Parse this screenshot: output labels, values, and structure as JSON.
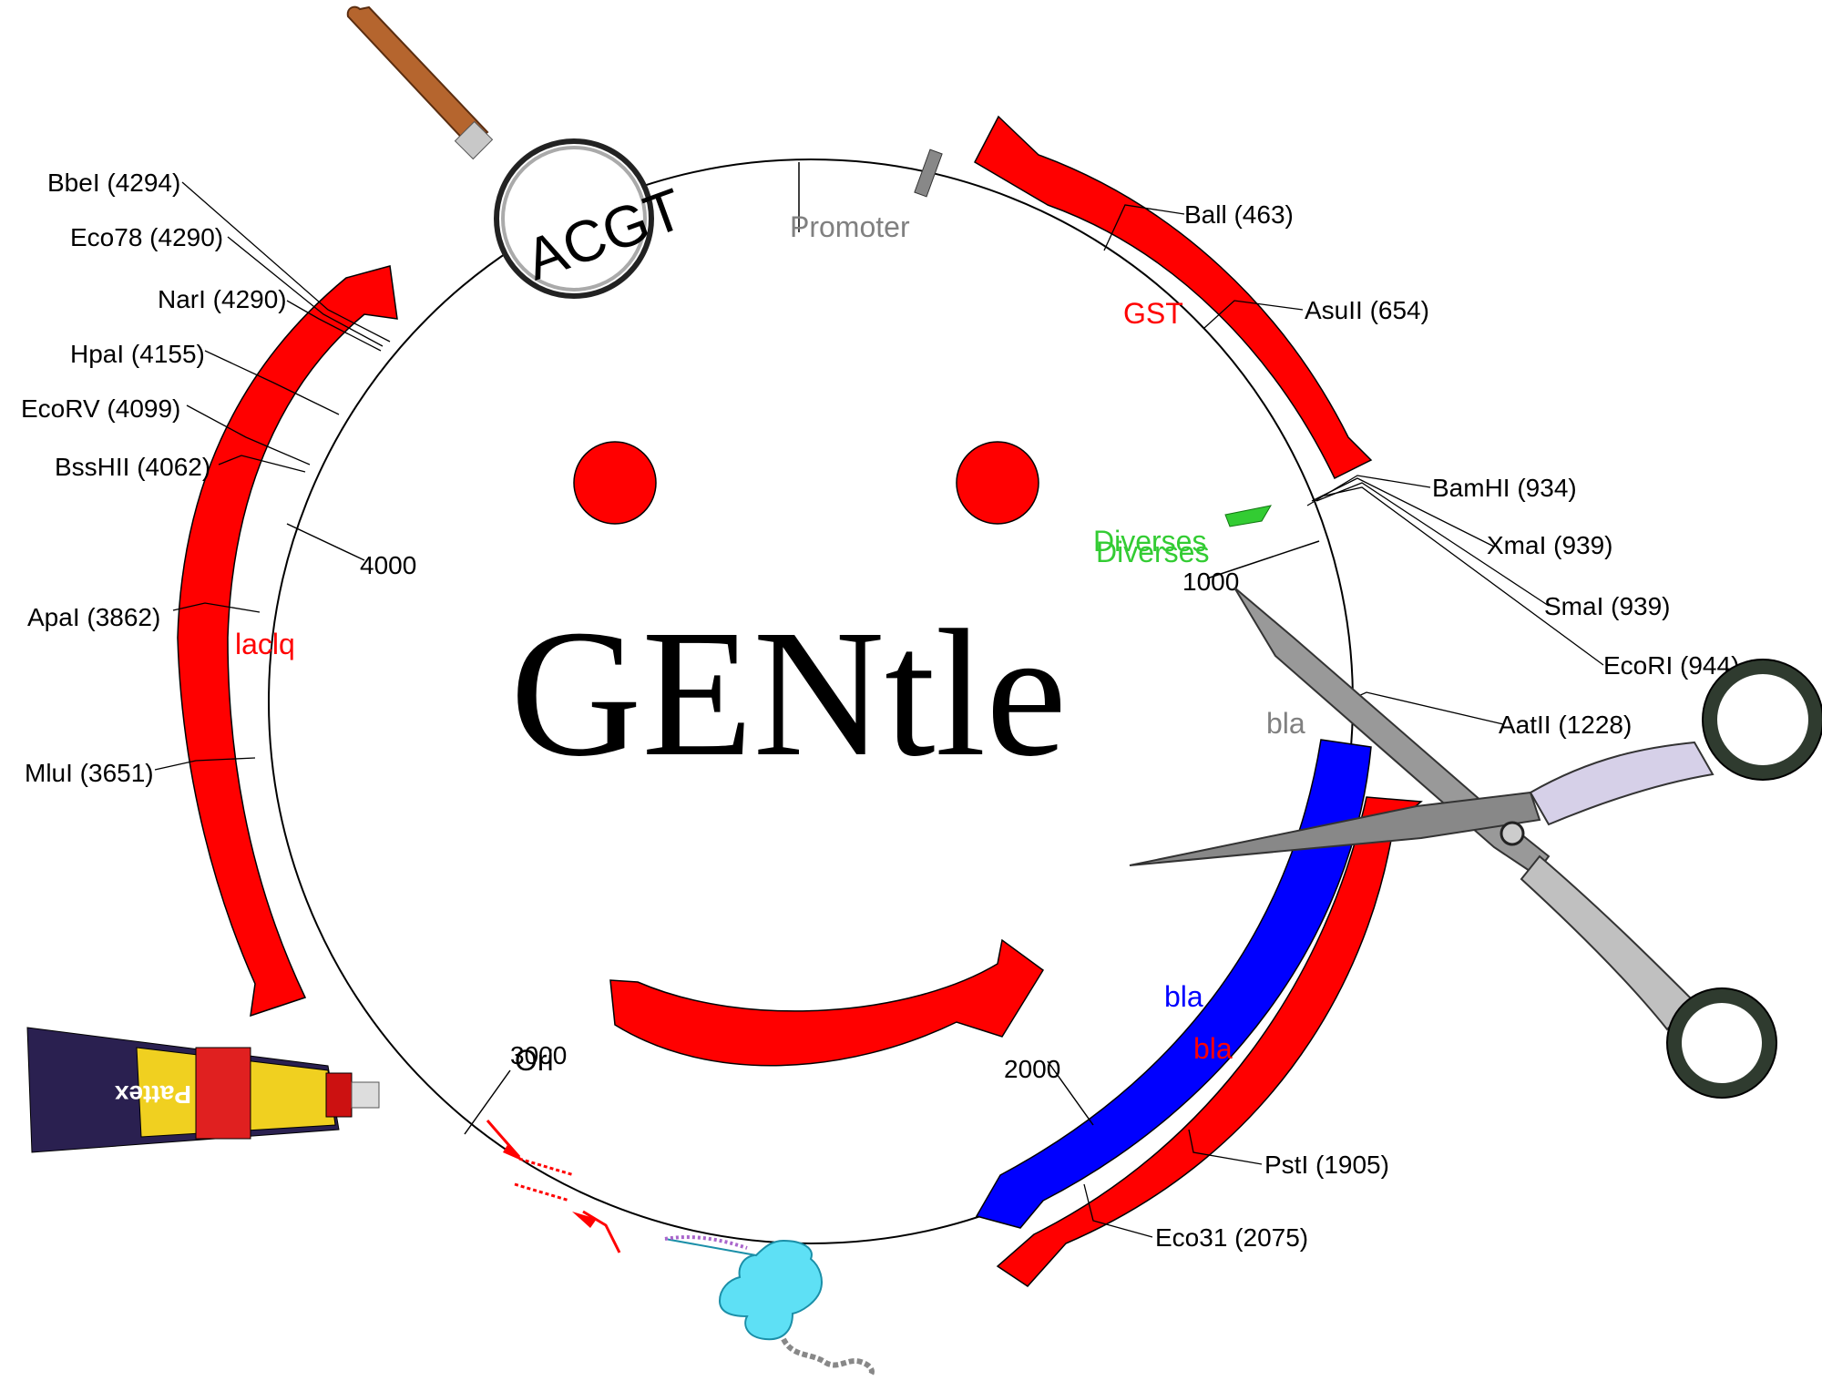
{
  "logo": {
    "text": "GENtle",
    "magnifier_text": "ACGT"
  },
  "colors": {
    "feature_red": "#ff0000",
    "feature_blue": "#0000ff",
    "promoter_gray": "#808080",
    "misc_green": "#33cc33",
    "backbone": "#000000"
  },
  "features": {
    "promoter": "Promoter",
    "gst": "GST",
    "diverses": "Diverses",
    "laclq": "laclq",
    "bla_gray": "bla",
    "bla_blue": "bla",
    "bla_red": "bla",
    "ori": "Ori"
  },
  "ticks": {
    "t1000": "1000",
    "t2000": "2000",
    "t3000": "3000",
    "t4000": "4000"
  },
  "sites": {
    "ball": "Ball (463)",
    "asull": "AsuII (654)",
    "bamhi": "BamHI (934)",
    "xmai": "XmaI (939)",
    "smai": "SmaI (939)",
    "ecori": "EcoRI (944)",
    "aatii": "AatII (1228)",
    "psti": "PstI (1905)",
    "eco31": "Eco31 (2075)",
    "bbei": "BbeI (4294)",
    "eco78": "Eco78 (4290)",
    "nari": "NarI (4290)",
    "hpai": "HpaI (4155)",
    "ecorv": "EcoRV (4099)",
    "bsshii": "BssHII (4062)",
    "apai": "ApaI (3862)",
    "mlui": "MluI (3651)"
  },
  "icons": [
    "magnifier-icon",
    "scissors-icon",
    "glue-tube-icon",
    "ribosome-icon"
  ],
  "glue_label": "Pattex"
}
